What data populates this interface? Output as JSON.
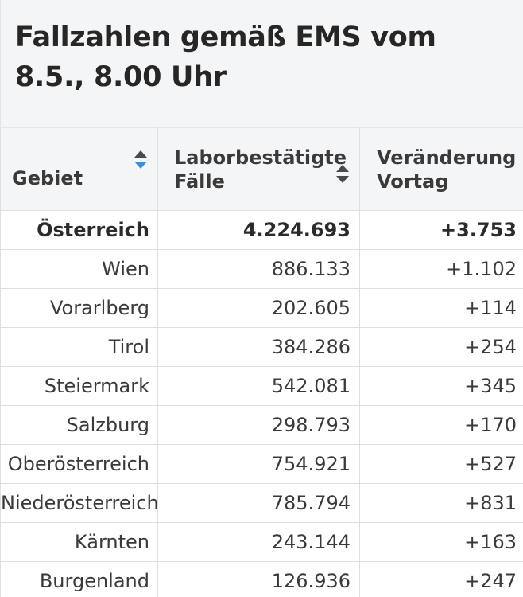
{
  "title": "Fallzahlen gemäß EMS vom 8.5., 8.00 Uhr",
  "columns": [
    {
      "label": "Gebiet",
      "sort_state": "descending"
    },
    {
      "label": "Laborbestätigte Fälle",
      "sort_state": "none"
    },
    {
      "label": "Veränderung Vortag",
      "sort_state": "none"
    }
  ],
  "colors": {
    "sort_active": "#3a8fd9",
    "sort_inactive": "#4a4a4a",
    "header_bg": "#f4f5f7",
    "border": "#dcdfe3"
  },
  "rows": [
    {
      "region": "Österreich",
      "cases": "4.224.693",
      "change": "+3.753",
      "total": true
    },
    {
      "region": "Wien",
      "cases": "886.133",
      "change": "+1.102"
    },
    {
      "region": "Vorarlberg",
      "cases": "202.605",
      "change": "+114"
    },
    {
      "region": "Tirol",
      "cases": "384.286",
      "change": "+254"
    },
    {
      "region": "Steiermark",
      "cases": "542.081",
      "change": "+345"
    },
    {
      "region": "Salzburg",
      "cases": "298.793",
      "change": "+170"
    },
    {
      "region": "Oberösterreich",
      "cases": "754.921",
      "change": "+527"
    },
    {
      "region": "Niederösterreich",
      "cases": "785.794",
      "change": "+831"
    },
    {
      "region": "Kärnten",
      "cases": "243.144",
      "change": "+163"
    },
    {
      "region": "Burgenland",
      "cases": "126.936",
      "change": "+247"
    }
  ]
}
